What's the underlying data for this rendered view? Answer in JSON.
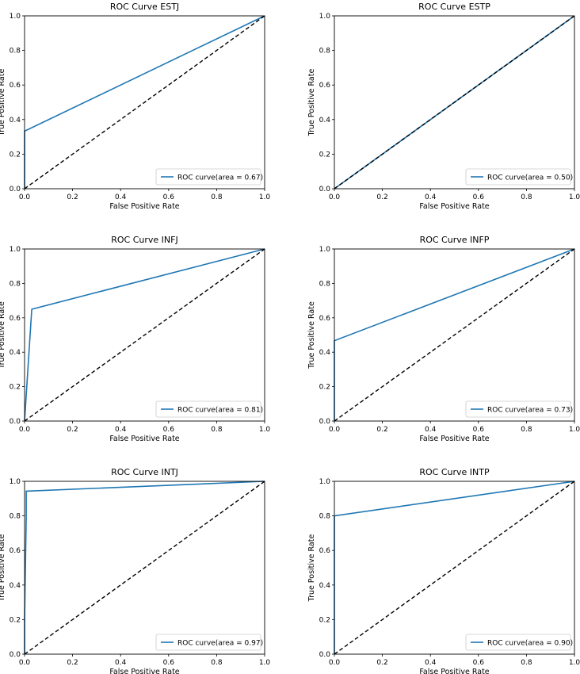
{
  "styles": {
    "roc_color": "#1f77b4",
    "diagonal_color": "#000000",
    "axis_color": "#000000"
  },
  "chart_data": [
    {
      "type": "line",
      "title": "ROC Curve ESTJ",
      "xlabel": "False Positive Rate",
      "ylabel": "True Positive Rate",
      "xlim": [
        0,
        1
      ],
      "ylim": [
        0,
        1
      ],
      "xticks": [
        "0.0",
        "0.2",
        "0.4",
        "0.6",
        "0.8",
        "1.0"
      ],
      "yticks": [
        "0.0",
        "0.2",
        "0.4",
        "0.6",
        "0.8",
        "1.0"
      ],
      "grid": false,
      "legend_position": "lower-right",
      "series": [
        {
          "name": "ROC curve(area = 0.67)",
          "style": "solid",
          "x": [
            0,
            0,
            1
          ],
          "y": [
            0,
            0.333,
            1
          ]
        },
        {
          "style": "dashed",
          "x": [
            0,
            1
          ],
          "y": [
            0,
            1
          ]
        }
      ]
    },
    {
      "type": "line",
      "title": "ROC Curve ESTP",
      "xlabel": "False Positive Rate",
      "ylabel": "True Positive Rate",
      "xlim": [
        0,
        1
      ],
      "ylim": [
        0,
        1
      ],
      "xticks": [
        "0.0",
        "0.2",
        "0.4",
        "0.6",
        "0.8",
        "1.0"
      ],
      "yticks": [
        "0.0",
        "0.2",
        "0.4",
        "0.6",
        "0.8",
        "1.0"
      ],
      "grid": false,
      "legend_position": "lower-right",
      "series": [
        {
          "name": "ROC curve(area = 0.50)",
          "style": "solid",
          "x": [
            0,
            1
          ],
          "y": [
            0,
            1
          ]
        },
        {
          "style": "dashed",
          "x": [
            0,
            1
          ],
          "y": [
            0,
            1
          ]
        }
      ]
    },
    {
      "type": "line",
      "title": "ROC Curve INFJ",
      "xlabel": "False Positive Rate",
      "ylabel": "True Positive Rate",
      "xlim": [
        0,
        1
      ],
      "ylim": [
        0,
        1
      ],
      "xticks": [
        "0.0",
        "0.2",
        "0.4",
        "0.6",
        "0.8",
        "1.0"
      ],
      "yticks": [
        "0.0",
        "0.2",
        "0.4",
        "0.6",
        "0.8",
        "1.0"
      ],
      "grid": false,
      "legend_position": "lower-right",
      "series": [
        {
          "name": "ROC curve(area = 0.81)",
          "style": "solid",
          "x": [
            0,
            0.03,
            1
          ],
          "y": [
            0,
            0.65,
            1
          ]
        },
        {
          "style": "dashed",
          "x": [
            0,
            1
          ],
          "y": [
            0,
            1
          ]
        }
      ]
    },
    {
      "type": "line",
      "title": "ROC Curve INFP",
      "xlabel": "False Positive Rate",
      "ylabel": "True Positive Rate",
      "xlim": [
        0,
        1
      ],
      "ylim": [
        0,
        1
      ],
      "xticks": [
        "0.0",
        "0.2",
        "0.4",
        "0.6",
        "0.8",
        "1.0"
      ],
      "yticks": [
        "0.0",
        "0.2",
        "0.4",
        "0.6",
        "0.8",
        "1.0"
      ],
      "grid": false,
      "legend_position": "lower-right",
      "series": [
        {
          "name": "ROC curve(area = 0.73)",
          "style": "solid",
          "x": [
            0,
            0,
            1
          ],
          "y": [
            0,
            0.467,
            1
          ]
        },
        {
          "style": "dashed",
          "x": [
            0,
            1
          ],
          "y": [
            0,
            1
          ]
        }
      ]
    },
    {
      "type": "line",
      "title": "ROC Curve INTJ",
      "xlabel": "False Positive Rate",
      "ylabel": "True Positive Rate",
      "xlim": [
        0,
        1
      ],
      "ylim": [
        0,
        1
      ],
      "xticks": [
        "0.0",
        "0.2",
        "0.4",
        "0.6",
        "0.8",
        "1.0"
      ],
      "yticks": [
        "0.0",
        "0.2",
        "0.4",
        "0.6",
        "0.8",
        "1.0"
      ],
      "grid": false,
      "legend_position": "lower-right",
      "series": [
        {
          "name": "ROC curve(area = 0.97)",
          "style": "solid",
          "x": [
            0,
            0,
            0.007,
            0.007,
            1
          ],
          "y": [
            0,
            0.2,
            0.8,
            0.943,
            1
          ]
        },
        {
          "style": "dashed",
          "x": [
            0,
            1
          ],
          "y": [
            0,
            1
          ]
        }
      ]
    },
    {
      "type": "line",
      "title": "ROC Curve INTP",
      "xlabel": "False Positive Rate",
      "ylabel": "True Positive Rate",
      "xlim": [
        0,
        1
      ],
      "ylim": [
        0,
        1
      ],
      "xticks": [
        "0.0",
        "0.2",
        "0.4",
        "0.6",
        "0.8",
        "1.0"
      ],
      "yticks": [
        "0.0",
        "0.2",
        "0.4",
        "0.6",
        "0.8",
        "1.0"
      ],
      "grid": false,
      "legend_position": "lower-right",
      "series": [
        {
          "name": "ROC curve(area = 0.90)",
          "style": "solid",
          "x": [
            0,
            0,
            1
          ],
          "y": [
            0,
            0.8,
            1
          ]
        },
        {
          "style": "dashed",
          "x": [
            0,
            1
          ],
          "y": [
            0,
            1
          ]
        }
      ]
    }
  ]
}
